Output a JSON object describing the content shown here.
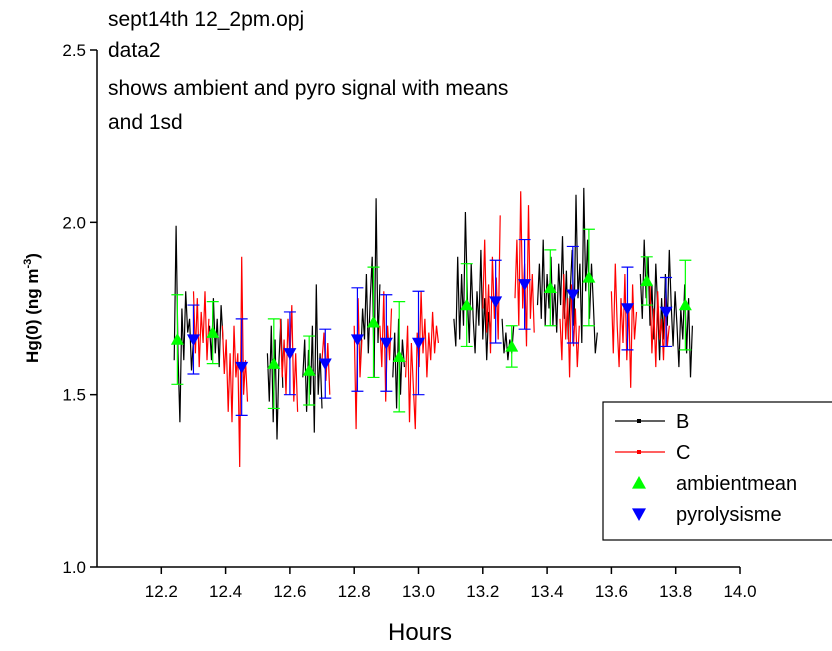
{
  "chart_data": {
    "type": "line",
    "title": [
      "sept14th 12_2pm.opj",
      "data2",
      "shows ambient and pyro signal with means",
      "and 1sd"
    ],
    "x_label": "Hours",
    "y_label": {
      "text": "Hg(0) (ng m",
      "superscript": "-3",
      "end": ")"
    },
    "xlim": [
      12.0,
      14.0
    ],
    "ylim": [
      1.0,
      2.5
    ],
    "xticks": [
      12.2,
      12.4,
      12.6,
      12.8,
      {
        "value": 13,
        "label": "13.0"
      },
      13.2,
      13.4,
      13.6,
      13.8,
      {
        "value": 14,
        "label": "14.0"
      }
    ],
    "yticks": [
      {
        "value": 1,
        "label": "1.0"
      },
      1.5,
      {
        "value": 2,
        "label": "2.0"
      },
      2.5
    ],
    "legend": "right",
    "series": [
      {
        "name": "B",
        "type": "line",
        "color": "#000000",
        "x": [
          12.24,
          12.246,
          12.252,
          12.258,
          12.264,
          12.27,
          12.276,
          12.282,
          12.288,
          12.294,
          12.3,
          null,
          12.35,
          12.356,
          12.362,
          12.368,
          12.374,
          12.38,
          12.386,
          12.392,
          null,
          12.53,
          12.536,
          12.542,
          12.548,
          12.554,
          12.56,
          12.566,
          12.572,
          12.578,
          null,
          12.64,
          12.646,
          12.652,
          12.658,
          12.664,
          12.67,
          12.676,
          12.682,
          12.688,
          12.694,
          12.7,
          null,
          12.82,
          12.826,
          12.832,
          12.838,
          12.844,
          12.85,
          12.856,
          12.862,
          12.868,
          12.874,
          12.88,
          null,
          12.92,
          12.926,
          12.932,
          12.938,
          12.944,
          12.95,
          12.956,
          null,
          13.11,
          13.116,
          13.122,
          13.128,
          13.134,
          13.14,
          13.146,
          13.152,
          13.158,
          13.164,
          13.17,
          13.176,
          13.182,
          13.188,
          13.194,
          13.2,
          13.206,
          13.212,
          13.218,
          13.224,
          null,
          13.26,
          13.266,
          13.272,
          13.278,
          13.284,
          13.29,
          13.296,
          null,
          13.37,
          13.376,
          13.382,
          13.388,
          13.394,
          13.4,
          13.406,
          13.412,
          13.418,
          13.424,
          13.43,
          13.436,
          13.442,
          13.448,
          13.454,
          13.46,
          13.466,
          13.472,
          13.478,
          13.484,
          13.49,
          13.496,
          13.502,
          13.508,
          13.514,
          13.52,
          13.526,
          13.532,
          13.538,
          13.544,
          13.55,
          13.556,
          null,
          13.69,
          13.696,
          13.702,
          13.708,
          13.714,
          13.72,
          13.726,
          13.732,
          13.738,
          13.744,
          13.75,
          13.756,
          13.762,
          13.768,
          13.774,
          13.78,
          13.786,
          13.792,
          13.798,
          13.804,
          13.81,
          13.816,
          13.822,
          13.828,
          13.834,
          13.84,
          13.846,
          13.852
        ],
        "values": [
          1.6,
          1.99,
          1.62,
          1.42,
          1.75,
          1.6,
          1.8,
          1.68,
          1.72,
          1.57,
          1.66,
          null,
          1.7,
          1.6,
          1.78,
          1.62,
          1.72,
          1.58,
          1.76,
          1.66,
          null,
          1.62,
          1.48,
          1.7,
          1.42,
          1.66,
          1.37,
          1.6,
          1.72,
          1.52,
          null,
          1.55,
          1.66,
          1.45,
          1.63,
          1.5,
          1.7,
          1.39,
          1.82,
          1.5,
          1.62,
          1.46,
          null,
          1.6,
          1.75,
          1.66,
          1.85,
          1.62,
          1.78,
          1.9,
          1.55,
          2.07,
          1.65,
          1.82,
          null,
          1.55,
          1.68,
          1.46,
          1.72,
          1.5,
          1.66,
          1.58,
          null,
          1.72,
          1.64,
          1.9,
          1.66,
          1.85,
          1.7,
          2.03,
          1.78,
          1.65,
          1.88,
          1.72,
          1.62,
          1.8,
          1.7,
          1.92,
          1.66,
          1.78,
          1.6,
          1.74,
          1.68,
          null,
          1.72,
          1.62,
          1.68,
          1.6,
          1.66,
          1.62,
          1.7,
          null,
          1.76,
          1.88,
          1.72,
          1.95,
          1.7,
          1.85,
          1.75,
          1.9,
          1.7,
          1.82,
          1.68,
          1.88,
          1.76,
          1.96,
          1.72,
          1.86,
          1.66,
          1.8,
          1.92,
          1.7,
          2.08,
          1.78,
          1.88,
          1.65,
          2.1,
          1.8,
          1.95,
          1.72,
          1.88,
          1.76,
          1.62,
          1.68,
          null,
          1.85,
          1.72,
          1.95,
          1.78,
          1.9,
          1.7,
          1.82,
          1.66,
          1.88,
          1.75,
          1.6,
          1.78,
          1.66,
          1.85,
          1.7,
          1.92,
          1.76,
          1.64,
          1.8,
          1.7,
          1.58,
          1.75,
          1.66,
          1.82,
          1.62,
          1.78,
          1.55,
          1.7
        ]
      },
      {
        "name": "C",
        "type": "line",
        "color": "#ff0000",
        "x": [
          12.3,
          12.306,
          12.312,
          12.318,
          12.324,
          12.33,
          12.336,
          12.342,
          12.348,
          null,
          12.39,
          12.396,
          12.402,
          12.408,
          12.414,
          12.42,
          12.426,
          12.432,
          12.438,
          12.444,
          12.45,
          12.456,
          12.462,
          12.468,
          null,
          12.57,
          12.576,
          12.582,
          12.588,
          12.594,
          12.6,
          12.606,
          12.612,
          12.618,
          12.624,
          null,
          12.7,
          12.706,
          12.712,
          12.718,
          12.724,
          null,
          12.8,
          12.806,
          12.812,
          12.818,
          12.824,
          null,
          12.88,
          12.886,
          12.892,
          12.898,
          12.904,
          12.91,
          12.916,
          null,
          12.96,
          12.966,
          12.972,
          12.978,
          12.984,
          12.99,
          12.996,
          13.002,
          13.008,
          13.014,
          13.02,
          13.026,
          13.032,
          13.038,
          13.044,
          13.05,
          13.056,
          13.062,
          null,
          13.2,
          13.206,
          13.212,
          13.218,
          13.224,
          13.23,
          13.236,
          13.242,
          13.248,
          13.254,
          null,
          13.3,
          13.306,
          13.312,
          13.318,
          13.324,
          13.33,
          13.336,
          13.342,
          13.348,
          13.354,
          13.36,
          null,
          13.44,
          13.446,
          13.452,
          13.458,
          13.464,
          13.47,
          13.476,
          13.482,
          13.488,
          13.494,
          13.5,
          null,
          13.6,
          13.606,
          13.612,
          13.618,
          13.624,
          13.63,
          13.636,
          13.642,
          13.648,
          13.654,
          13.66,
          13.666,
          13.672,
          13.678,
          null,
          13.72,
          13.726,
          13.732,
          13.738,
          13.744,
          13.75,
          13.756,
          13.762,
          13.768,
          13.774,
          13.78
        ],
        "values": [
          1.8,
          1.62,
          1.78,
          1.58,
          1.74,
          1.65,
          1.8,
          1.6,
          1.72,
          null,
          1.7,
          1.56,
          1.66,
          1.45,
          1.62,
          1.42,
          1.7,
          1.55,
          1.62,
          1.29,
          1.9,
          1.5,
          1.6,
          1.48,
          null,
          1.72,
          1.55,
          1.66,
          1.5,
          1.72,
          1.6,
          1.76,
          1.48,
          1.62,
          1.45,
          null,
          1.6,
          1.68,
          1.54,
          1.65,
          1.5,
          null,
          1.7,
          1.4,
          1.78,
          1.55,
          1.66,
          null,
          1.7,
          1.58,
          1.8,
          1.48,
          1.7,
          1.6,
          1.75,
          null,
          1.55,
          1.7,
          1.42,
          1.65,
          1.52,
          1.4,
          1.68,
          1.58,
          1.8,
          1.62,
          1.72,
          1.55,
          1.68,
          1.6,
          1.74,
          1.62,
          1.7,
          1.65,
          null,
          1.75,
          1.95,
          1.68,
          1.82,
          1.62,
          1.9,
          1.72,
          1.84,
          1.66,
          2.02,
          null,
          1.78,
          1.95,
          1.7,
          2.09,
          1.75,
          1.88,
          1.64,
          2.05,
          1.72,
          1.85,
          1.68,
          null,
          1.72,
          1.6,
          1.85,
          1.66,
          1.78,
          1.55,
          1.82,
          1.64,
          1.75,
          1.58,
          1.7,
          null,
          1.8,
          1.62,
          1.88,
          1.7,
          1.58,
          1.78,
          1.65,
          1.85,
          1.6,
          1.76,
          1.52,
          1.82,
          1.66,
          1.74,
          null,
          1.82,
          1.62,
          1.75,
          1.58,
          1.8,
          1.66,
          1.72,
          1.6,
          1.78,
          1.64,
          1.7
        ]
      },
      {
        "name": "ambientmean",
        "type": "scatter",
        "marker": "triangle-up",
        "color": "#00ff00",
        "x": [
          12.25,
          12.36,
          12.55,
          12.66,
          12.86,
          12.94,
          13.15,
          13.29,
          13.41,
          13.53,
          13.71,
          13.83
        ],
        "values": [
          1.66,
          1.68,
          1.59,
          1.57,
          1.71,
          1.61,
          1.76,
          1.64,
          1.81,
          1.84,
          1.83,
          1.76
        ],
        "errors": [
          0.13,
          0.09,
          0.13,
          0.1,
          0.16,
          0.16,
          0.12,
          0.06,
          0.11,
          0.14,
          0.07,
          0.13
        ]
      },
      {
        "name": "pyrolysisme",
        "type": "scatter",
        "marker": "triangle-down",
        "color": "#0000ff",
        "x": [
          12.3,
          12.45,
          12.6,
          12.71,
          12.81,
          12.9,
          13.0,
          13.24,
          13.33,
          13.48,
          13.65,
          13.77
        ],
        "values": [
          1.66,
          1.58,
          1.62,
          1.59,
          1.66,
          1.65,
          1.65,
          1.77,
          1.82,
          1.79,
          1.75,
          1.74
        ],
        "errors": [
          0.1,
          0.14,
          0.12,
          0.1,
          0.15,
          0.14,
          0.15,
          0.12,
          0.13,
          0.14,
          0.12,
          0.1
        ]
      }
    ]
  }
}
